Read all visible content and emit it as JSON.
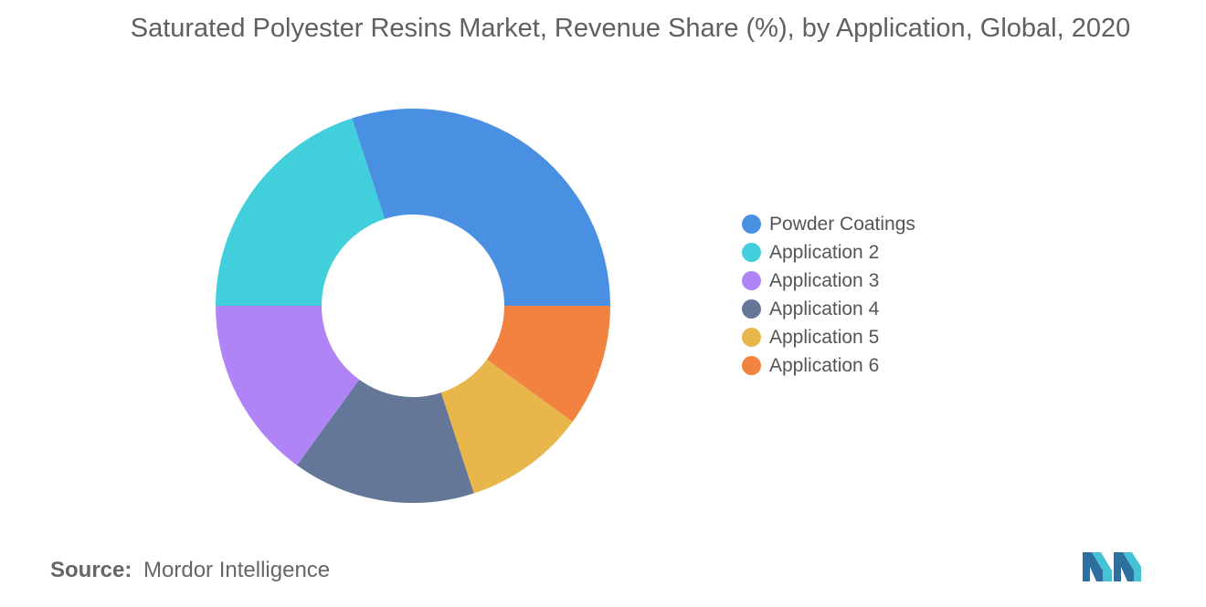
{
  "title": "Saturated Polyester Resins Market, Revenue Share (%), by Application, Global, 2020",
  "source": {
    "prefix": "Source:",
    "text": "Mordor Intelligence"
  },
  "logo_icon": "mordor-intelligence-logo-icon",
  "chart_data": {
    "type": "pie",
    "style": "donut",
    "legend_position": "right",
    "slices": [
      {
        "label": "Powder Coatings",
        "value": 30,
        "color": "#4a90e2"
      },
      {
        "label": "Application 2",
        "value": 20,
        "color": "#40cfdb"
      },
      {
        "label": "Application 3",
        "value": 15,
        "color": "#b083f7"
      },
      {
        "label": "Application 4",
        "value": 15,
        "color": "#657798"
      },
      {
        "label": "Application 5",
        "value": 10,
        "color": "#e9b64b"
      },
      {
        "label": "Application 6",
        "value": 10,
        "color": "#f2823f"
      }
    ]
  }
}
